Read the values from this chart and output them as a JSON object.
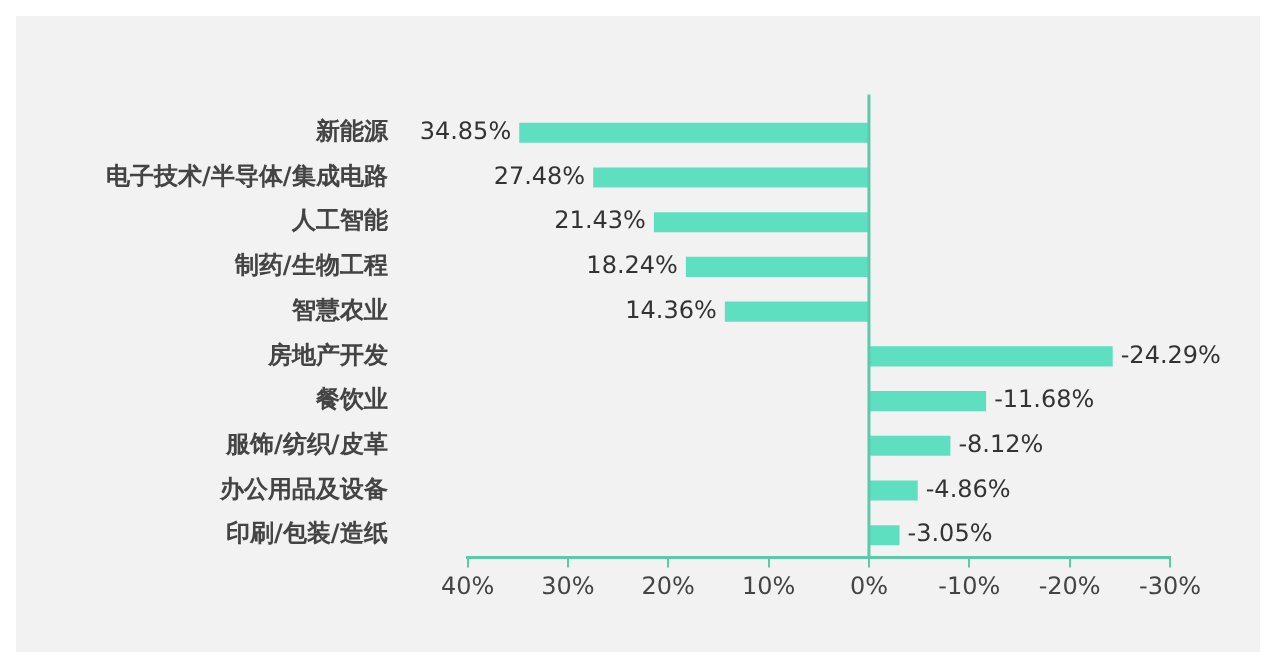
{
  "chart_data": {
    "type": "bar",
    "orientation": "horizontal",
    "categories": [
      "新能源",
      "电子技术/半导体/集成电路",
      "人工智能",
      "制药/生物工程",
      "智慧农业",
      "房地产开发",
      "餐饮业",
      "服饰/纺织/皮革",
      "办公用品及设备",
      "印刷/包装/造纸"
    ],
    "series": [
      {
        "color": "#5ee0c0",
        "values": [
          34.85,
          27.48,
          21.43,
          18.24,
          14.36,
          -24.29,
          -11.68,
          -8.12,
          -4.86,
          -3.05
        ],
        "value_labels": [
          "34.85%",
          "27.48%",
          "21.43%",
          "18.24%",
          "14.36%",
          "-24.29%",
          "-11.68%",
          "-8.12%",
          "-4.86%",
          "-3.05%"
        ]
      }
    ],
    "xlim": [
      40,
      -30
    ],
    "xticks": [
      {
        "value": 40,
        "label": "40%"
      },
      {
        "value": 30,
        "label": "30%"
      },
      {
        "value": 20,
        "label": "20%"
      },
      {
        "value": 10,
        "label": "10%"
      },
      {
        "value": 0,
        "label": "0%"
      },
      {
        "value": -10,
        "label": "-10%"
      },
      {
        "value": -20,
        "label": "-20%"
      },
      {
        "value": -30,
        "label": "-30%"
      }
    ],
    "ref_lines": [
      {
        "axis": "x",
        "value": 0,
        "color": "#5cc9a8"
      }
    ],
    "grid": false,
    "legend": false
  }
}
